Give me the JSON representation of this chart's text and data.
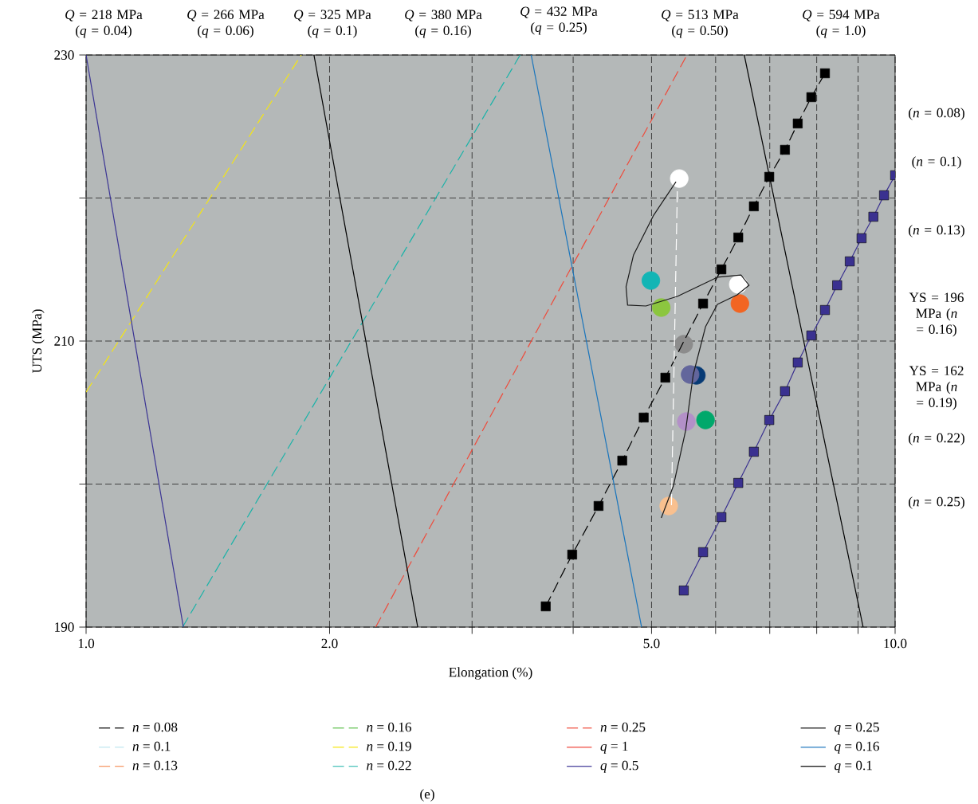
{
  "chart_data": {
    "type": "line",
    "xlabel": "Elongation (%)",
    "ylabel": "UTS (MPa)",
    "log": "x",
    "grid": true,
    "legend": "bottom",
    "xlim": [
      1,
      10
    ],
    "ylim": [
      190,
      230
    ],
    "xticks": [
      {
        "value": 1,
        "label": "1.0"
      },
      {
        "value": 2,
        "label": "2.0"
      },
      {
        "value": 3,
        "label": null
      },
      {
        "value": 4,
        "label": null
      },
      {
        "value": 5,
        "label": "5.0"
      },
      {
        "value": 6,
        "label": null
      },
      {
        "value": 7,
        "label": null
      },
      {
        "value": 8,
        "label": null
      },
      {
        "value": 9,
        "label": null
      },
      {
        "value": 10,
        "label": "10.0"
      }
    ],
    "yticks": [
      190,
      {
        "value": 200,
        "label": null
      },
      210,
      {
        "value": 220,
        "label": null
      },
      230
    ],
    "series": [
      {
        "name": "*n* = 0.08",
        "color": "#000000",
        "line_style": "dashed",
        "marker": "square",
        "x": [
          3.7,
          3.99,
          4.3,
          4.6,
          4.89,
          5.2,
          5.79,
          6.1,
          6.4,
          6.69,
          6.99,
          7.31,
          7.58,
          7.88,
          8.19
        ],
        "values": [
          191.45,
          195.07,
          198.47,
          201.64,
          204.65,
          207.44,
          212.62,
          215.01,
          217.24,
          219.42,
          221.48,
          223.37,
          225.21,
          227.05,
          228.72
        ]
      },
      {
        "name": "*n* = 0.1",
        "color": "#bfe6ef",
        "line_style": "dashed",
        "marker": "none"
      },
      {
        "name": "*n* = 0.13",
        "color": "#f47c3c",
        "line_style": "dashed",
        "marker": "none"
      },
      {
        "name": "*n* = 0.16",
        "color": "#5bbf4a",
        "line_style": "dashed",
        "marker": "none"
      },
      {
        "name": "*n* = 0.19",
        "color": "#f5e612",
        "line_style": "dashed",
        "marker": "none",
        "x": [
          1.0,
          1.845
        ],
        "values": [
          206.43,
          230
        ]
      },
      {
        "name": "*n* = 0.22",
        "color": "#19b3a8",
        "line_style": "dashed",
        "marker": "none",
        "x": [
          1.316,
          3.44
        ],
        "values": [
          190,
          230
        ]
      },
      {
        "name": "*n* = 0.25",
        "color": "#ef4a3a",
        "line_style": "dashed",
        "marker": "none",
        "x": [
          2.28,
          5.53
        ],
        "values": [
          190,
          230
        ]
      },
      {
        "name": "*q* = 1",
        "color": "#ee4036",
        "line_style": "solid",
        "marker": "none"
      },
      {
        "name": "*q* = 0.5",
        "color": "#3b3494",
        "line_style": "solid",
        "marker": "none",
        "x": [
          1.0,
          1.319
        ],
        "values": [
          230,
          190
        ]
      },
      {
        "name": "*q* = 0.25",
        "color": "#000000",
        "line_style": "solid",
        "marker": "none",
        "x": [
          6.51,
          9.13
        ],
        "values": [
          230,
          190
        ]
      },
      {
        "name": "*q* = 0.16",
        "color": "#1a75bc",
        "line_style": "solid",
        "marker": "none",
        "x": [
          3.55,
          4.86
        ],
        "values": [
          230,
          190
        ]
      },
      {
        "name": "*q* = 0.1",
        "color": "#000000",
        "line_style": "solid",
        "marker": "none",
        "x": [
          1.913,
          2.57
        ],
        "values": [
          230,
          190
        ]
      },
      {
        "color": "#3a3190",
        "line_style": "solid",
        "marker": "square",
        "x": [
          5.48,
          5.79,
          6.1,
          6.4,
          6.69,
          6.99,
          7.31,
          7.58,
          7.88,
          8.19,
          8.48,
          8.79,
          9.09,
          9.4,
          9.69,
          10.0
        ],
        "values": [
          192.56,
          195.24,
          197.69,
          200.08,
          202.26,
          204.48,
          206.49,
          208.5,
          210.39,
          212.17,
          213.9,
          215.57,
          217.19,
          218.69,
          220.19,
          221.59
        ]
      },
      {
        "color": "#ffffff",
        "line_style": "dashed",
        "marker": "none",
        "x": [
          5.38,
          5.29
        ],
        "values": [
          220.47,
          198.19
        ]
      },
      {
        "color": "#1a1a1a",
        "line_style": "solid",
        "marker": "none",
        "x": [
          5.36,
          5.03,
          4.75,
          4.65,
          4.67,
          4.92,
          5.38,
          6.03,
          6.45,
          6.6,
          6.38,
          6.03,
          5.83,
          5.63,
          5.51,
          5.32,
          5.14
        ],
        "values": [
          221.14,
          218.8,
          216.02,
          213.79,
          212.51,
          212.45,
          213.12,
          214.46,
          214.62,
          213.9,
          213.23,
          212.56,
          211.0,
          207.66,
          203.76,
          199.86,
          197.63
        ]
      },
      {
        "type": "scatter",
        "marker": "circle",
        "x": [
          5.41,
          4.99,
          5.14,
          6.43,
          6.4,
          5.48,
          5.68,
          5.58,
          5.52,
          5.83,
          5.25
        ],
        "values": [
          221.36,
          214.23,
          212.34,
          212.62,
          213.96,
          209.78,
          207.6,
          207.66,
          204.37,
          204.48,
          198.47
        ],
        "colors": [
          "#ffffff",
          "#13b5b5",
          "#8cc63f",
          "#f26522",
          "#ffffff",
          "#8c8c8c",
          "#063a75",
          "#63669c",
          "#b390c8",
          "#00a86b",
          "#f9c08f"
        ]
      }
    ],
    "annotations": [
      "*Q* = 218 MPa (*q* = 0.04)",
      "*Q* = 266 MPa (*q* = 0.06)",
      "*Q* = 325 MPa (*q* = 0.1)",
      "*Q* = 380 MPa (*q* = 0.16)",
      "*Q* = 432 MPa (*q* = 0.25)",
      "*Q* = 513 MPa (*q* = 0.50)",
      "*Q* = 594 MPa (*q* = 1.0)",
      "(*n* = 0.08)",
      "(*n* = 0.1)",
      "(*n* = 0.13)",
      "YS = 196 MPa (*n* = 0.16)",
      "YS = 162 MPa (*n* = 0.19)",
      "(*n* = 0.22)",
      "(*n* = 0.25)",
      "(e)"
    ]
  }
}
